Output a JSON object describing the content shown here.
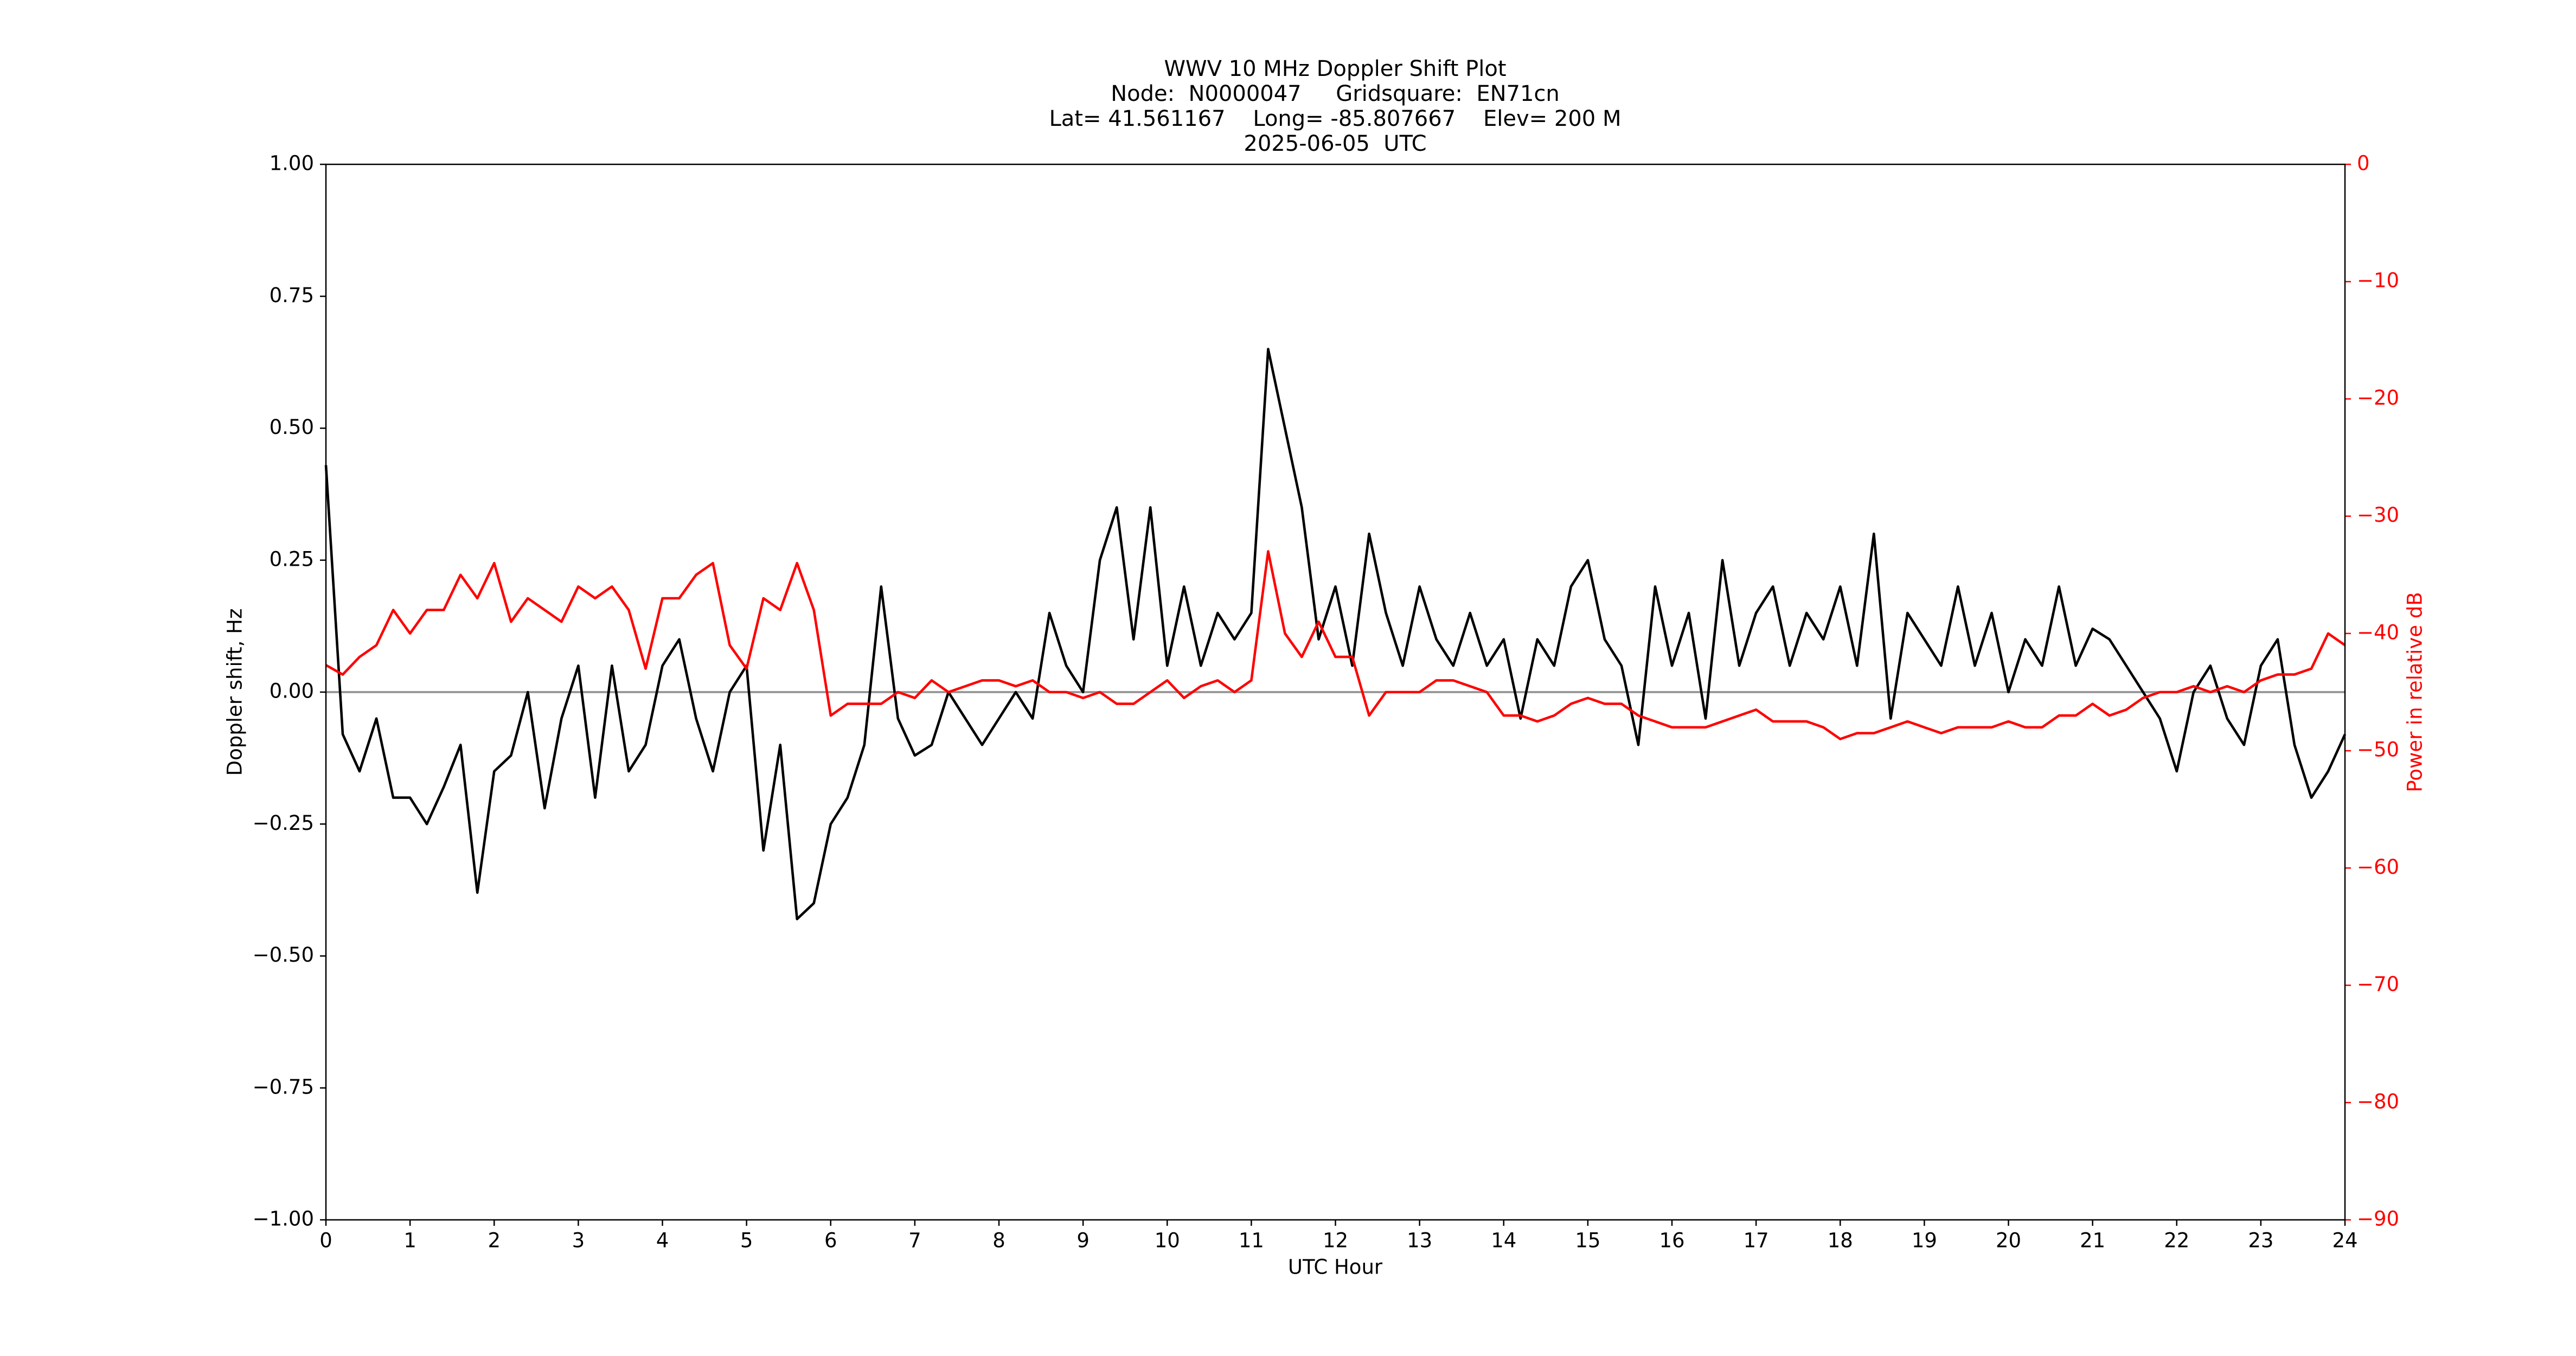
{
  "chart_data": {
    "type": "line",
    "title_lines": [
      "WWV 10 MHz Doppler Shift Plot",
      "Node:  N0000047     Gridsquare:  EN71cn",
      "Lat= 41.561167    Long= -85.807667    Elev= 200 M",
      "2025-06-05  UTC"
    ],
    "xlabel": "UTC Hour",
    "ylabel": "Doppler shift, Hz",
    "y2label": "Power in relative dB",
    "reference_line": 0,
    "reference_color": "#999999",
    "x": [
      0,
      0.2,
      0.4,
      0.6,
      0.8,
      1,
      1.2,
      1.4,
      1.6,
      1.8,
      2,
      2.2,
      2.4,
      2.6,
      2.8,
      3,
      3.2,
      3.4,
      3.6,
      3.8,
      4,
      4.2,
      4.4,
      4.6,
      4.8,
      5,
      5.2,
      5.4,
      5.6,
      5.8,
      6,
      6.2,
      6.4,
      6.6,
      6.8,
      7,
      7.2,
      7.4,
      7.6,
      7.8,
      8,
      8.2,
      8.4,
      8.6,
      8.8,
      9,
      9.2,
      9.4,
      9.6,
      9.8,
      10,
      10.2,
      10.4,
      10.6,
      10.8,
      11,
      11.2,
      11.4,
      11.6,
      11.8,
      12,
      12.2,
      12.4,
      12.6,
      12.8,
      13,
      13.2,
      13.4,
      13.6,
      13.8,
      14,
      14.2,
      14.4,
      14.6,
      14.8,
      15,
      15.2,
      15.4,
      15.6,
      15.8,
      16,
      16.2,
      16.4,
      16.6,
      16.8,
      17,
      17.2,
      17.4,
      17.6,
      17.8,
      18,
      18.2,
      18.4,
      18.6,
      18.8,
      19,
      19.2,
      19.4,
      19.6,
      19.8,
      20,
      20.2,
      20.4,
      20.6,
      20.8,
      21,
      21.2,
      21.4,
      21.6,
      21.8,
      22,
      22.2,
      22.4,
      22.6,
      22.8,
      23,
      23.2,
      23.4,
      23.6,
      23.8,
      24
    ],
    "series": [
      {
        "color": "#000000",
        "axis": "y",
        "values": [
          0.43,
          -0.08,
          -0.15,
          -0.05,
          -0.2,
          -0.2,
          -0.25,
          -0.18,
          -0.1,
          -0.38,
          -0.15,
          -0.12,
          0.0,
          -0.22,
          -0.05,
          0.05,
          -0.2,
          0.05,
          -0.15,
          -0.1,
          0.05,
          0.1,
          -0.05,
          -0.15,
          0.0,
          0.05,
          -0.3,
          -0.1,
          -0.43,
          -0.4,
          -0.25,
          -0.2,
          -0.1,
          0.2,
          -0.05,
          -0.12,
          -0.1,
          0.0,
          -0.05,
          -0.1,
          -0.05,
          0.0,
          -0.05,
          0.15,
          0.05,
          0.0,
          0.25,
          0.35,
          0.1,
          0.35,
          0.05,
          0.2,
          0.05,
          0.15,
          0.1,
          0.15,
          0.65,
          0.5,
          0.35,
          0.1,
          0.2,
          0.05,
          0.3,
          0.15,
          0.05,
          0.2,
          0.1,
          0.05,
          0.15,
          0.05,
          0.1,
          -0.05,
          0.1,
          0.05,
          0.2,
          0.25,
          0.1,
          0.05,
          -0.1,
          0.2,
          0.05,
          0.15,
          -0.05,
          0.25,
          0.05,
          0.15,
          0.2,
          0.05,
          0.15,
          0.1,
          0.2,
          0.05,
          0.3,
          -0.05,
          0.15,
          0.1,
          0.05,
          0.2,
          0.05,
          0.15,
          0.0,
          0.1,
          0.05,
          0.2,
          0.05,
          0.12,
          0.1,
          0.05,
          0.0,
          -0.05,
          -0.15,
          0.0,
          0.05,
          -0.05,
          -0.1,
          0.05,
          0.1,
          -0.1,
          -0.2,
          -0.15,
          -0.08
        ]
      },
      {
        "color": "#ff0000",
        "axis": "y2",
        "values": [
          -42.7,
          -43.5,
          -42,
          -41,
          -38,
          -40,
          -38,
          -38,
          -35,
          -37,
          -34,
          -39,
          -37,
          -38,
          -39,
          -36,
          -37,
          -36,
          -38,
          -43,
          -37,
          -37,
          -35,
          -34,
          -41,
          -43,
          -37,
          -38,
          -34,
          -38,
          -47,
          -46,
          -46,
          -46,
          -45,
          -45.5,
          -44,
          -45,
          -44.5,
          -44,
          -44,
          -44.5,
          -44,
          -45,
          -45,
          -45.5,
          -45,
          -46,
          -46,
          -45,
          -44,
          -45.5,
          -44.5,
          -44,
          -45,
          -44,
          -33,
          -40,
          -42,
          -39,
          -42,
          -42,
          -47,
          -45,
          -45,
          -45,
          -44,
          -44,
          -44.5,
          -45,
          -47,
          -47,
          -47.5,
          -47,
          -46,
          -45.5,
          -46,
          -46,
          -47,
          -47.5,
          -48,
          -48,
          -48,
          -47.5,
          -47,
          -46.5,
          -47.5,
          -47.5,
          -47.5,
          -48,
          -49,
          -48.5,
          -48.5,
          -48,
          -47.5,
          -48,
          -48.5,
          -48,
          -48,
          -48,
          -47.5,
          -48,
          -48,
          -47,
          -47,
          -46,
          -47,
          -46.5,
          -45.5,
          -45,
          -45,
          -44.5,
          -45,
          -44.5,
          -45,
          -44,
          -43.5,
          -43.5,
          -43,
          -40,
          -41
        ]
      }
    ],
    "xlim": [
      0,
      24
    ],
    "xticks": [
      0,
      1,
      2,
      3,
      4,
      5,
      6,
      7,
      8,
      9,
      10,
      11,
      12,
      13,
      14,
      15,
      16,
      17,
      18,
      19,
      20,
      21,
      22,
      23,
      24
    ],
    "ylim": [
      -1,
      1
    ],
    "yticks": [
      {
        "value": -1,
        "label": "−1.00"
      },
      {
        "value": -0.75,
        "label": "−0.75"
      },
      {
        "value": -0.5,
        "label": "−0.50"
      },
      {
        "value": -0.25,
        "label": "−0.25"
      },
      {
        "value": 0,
        "label": "0.00"
      },
      {
        "value": 0.25,
        "label": "0.25"
      },
      {
        "value": 0.5,
        "label": "0.50"
      },
      {
        "value": 0.75,
        "label": "0.75"
      },
      {
        "value": 1,
        "label": "1.00"
      }
    ],
    "y2lim": [
      -90,
      0
    ],
    "y2color": "#ff0000",
    "y2ticks": [
      {
        "value": -90,
        "label": "−90"
      },
      {
        "value": -80,
        "label": "−80"
      },
      {
        "value": -70,
        "label": "−70"
      },
      {
        "value": -60,
        "label": "−60"
      },
      {
        "value": -50,
        "label": "−50"
      },
      {
        "value": -40,
        "label": "−40"
      },
      {
        "value": -30,
        "label": "−30"
      },
      {
        "value": -20,
        "label": "−20"
      },
      {
        "value": -10,
        "label": "−10"
      },
      0
    ]
  }
}
